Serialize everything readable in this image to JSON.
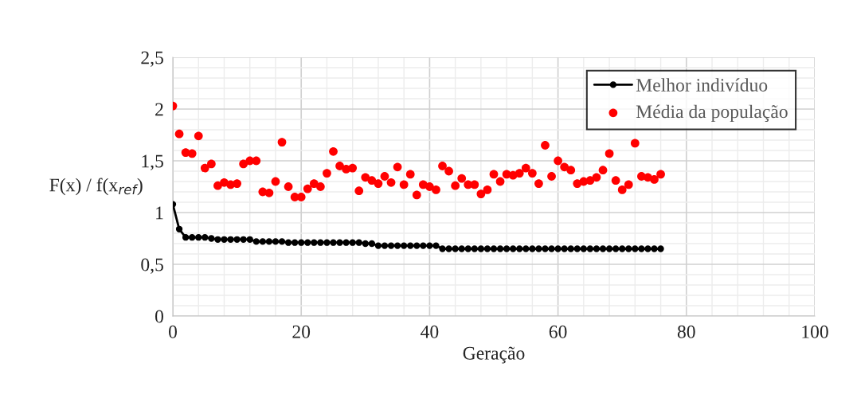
{
  "chart_data": {
    "type": "scatter",
    "xlabel": "Geração",
    "ylabel": "F(x) / f(x$_{ref}$)",
    "xlim": [
      0,
      100
    ],
    "xticks": [
      0,
      20,
      40,
      60,
      80,
      100
    ],
    "ylim": [
      0,
      2.5
    ],
    "yticks": [
      0,
      {
        "value": 0.5,
        "label": "0,5"
      },
      1,
      {
        "value": 1.5,
        "label": "1,5"
      },
      2,
      {
        "value": 2.5,
        "label": "2,5"
      }
    ],
    "grid": true,
    "legend": "top right",
    "series": [
      {
        "name": "Melhor indivíduo",
        "type": "line",
        "marker": "circle",
        "color": "#000000",
        "x": [
          0,
          1,
          2,
          3,
          4,
          5,
          6,
          7,
          8,
          9,
          10,
          11,
          12,
          13,
          14,
          15,
          16,
          17,
          18,
          19,
          20,
          21,
          22,
          23,
          24,
          25,
          26,
          27,
          28,
          29,
          30,
          31,
          32,
          33,
          34,
          35,
          36,
          37,
          38,
          39,
          40,
          41,
          42,
          43,
          44,
          45,
          46,
          47,
          48,
          49,
          50,
          51,
          52,
          53,
          54,
          55,
          56,
          57,
          58,
          59,
          60,
          61,
          62,
          63,
          64,
          65,
          66,
          67,
          68,
          69,
          70,
          71,
          72,
          73,
          74,
          75,
          76
        ],
        "values": [
          1.08,
          0.84,
          0.76,
          0.76,
          0.76,
          0.76,
          0.75,
          0.74,
          0.74,
          0.74,
          0.74,
          0.74,
          0.74,
          0.72,
          0.72,
          0.72,
          0.72,
          0.72,
          0.71,
          0.71,
          0.71,
          0.71,
          0.71,
          0.71,
          0.71,
          0.71,
          0.71,
          0.71,
          0.71,
          0.71,
          0.7,
          0.7,
          0.68,
          0.68,
          0.68,
          0.68,
          0.68,
          0.68,
          0.68,
          0.68,
          0.68,
          0.68,
          0.65,
          0.65,
          0.65,
          0.65,
          0.65,
          0.65,
          0.65,
          0.65,
          0.65,
          0.65,
          0.65,
          0.65,
          0.65,
          0.65,
          0.65,
          0.65,
          0.65,
          0.65,
          0.65,
          0.65,
          0.65,
          0.65,
          0.65,
          0.65,
          0.65,
          0.65,
          0.65,
          0.65,
          0.65,
          0.65,
          0.65,
          0.65,
          0.65,
          0.65,
          0.65
        ]
      },
      {
        "name": "Média da população",
        "marker": "circle",
        "color": "#ff0000",
        "x": [
          0,
          1,
          2,
          3,
          4,
          5,
          6,
          7,
          8,
          9,
          10,
          11,
          12,
          13,
          14,
          15,
          16,
          17,
          18,
          19,
          20,
          21,
          22,
          23,
          24,
          25,
          26,
          27,
          28,
          29,
          30,
          31,
          32,
          33,
          34,
          35,
          36,
          37,
          38,
          39,
          40,
          41,
          42,
          43,
          44,
          45,
          46,
          47,
          48,
          49,
          50,
          51,
          52,
          53,
          54,
          55,
          56,
          57,
          58,
          59,
          60,
          61,
          62,
          63,
          64,
          65,
          66,
          67,
          68,
          69,
          70,
          71,
          72,
          73,
          74,
          75,
          76
        ],
        "values": [
          2.03,
          1.76,
          1.58,
          1.57,
          1.74,
          1.43,
          1.47,
          1.26,
          1.29,
          1.27,
          1.28,
          1.47,
          1.5,
          1.5,
          1.2,
          1.19,
          1.3,
          1.68,
          1.25,
          1.15,
          1.15,
          1.23,
          1.28,
          1.25,
          1.38,
          1.59,
          1.45,
          1.42,
          1.43,
          1.21,
          1.34,
          1.31,
          1.28,
          1.35,
          1.29,
          1.44,
          1.27,
          1.37,
          1.17,
          1.27,
          1.25,
          1.22,
          1.45,
          1.4,
          1.26,
          1.33,
          1.27,
          1.27,
          1.18,
          1.22,
          1.37,
          1.3,
          1.37,
          1.36,
          1.38,
          1.43,
          1.38,
          1.28,
          1.65,
          1.35,
          1.5,
          1.44,
          1.41,
          1.28,
          1.3,
          1.31,
          1.34,
          1.41,
          1.57,
          1.31,
          1.22,
          1.27,
          1.67,
          1.35,
          1.34,
          1.32,
          1.37
        ]
      }
    ]
  }
}
